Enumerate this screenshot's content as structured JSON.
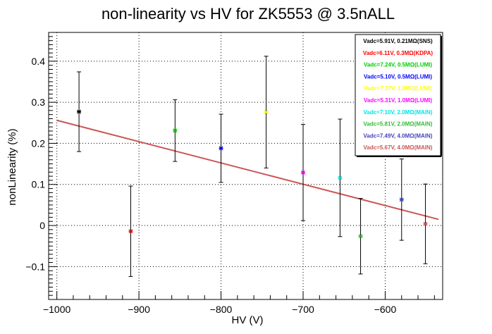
{
  "chart_data": {
    "type": "scatter",
    "title": "non-linearity vs HV for ZK5553 @ 3.5nALL",
    "xlabel": "HV (V)",
    "ylabel": "nonLinearity (%)",
    "xlim": [
      -1010,
      -530
    ],
    "ylim": [
      -0.18,
      0.47
    ],
    "x_ticks": [
      -1000,
      -900,
      -800,
      -700,
      -600
    ],
    "x_tick_labels": [
      "−1000",
      "−900",
      "−800",
      "−700",
      "−600"
    ],
    "y_ticks": [
      -0.1,
      0,
      0.1,
      0.2,
      0.3,
      0.4
    ],
    "y_tick_labels": [
      "−0.1",
      "0",
      "0.1",
      "0.2",
      "0.3",
      "0.4"
    ],
    "grid": true,
    "legend_position": "top-right",
    "series": [
      {
        "name": "Vadc=5.91V, 0.21MΩ(SNS)",
        "color": "#000000",
        "x": -973,
        "y": 0.277,
        "err": 0.097
      },
      {
        "name": "Vadc=6.11V, 0.3MΩ(KDPA)",
        "color": "#ff0000",
        "x": -910,
        "y": -0.014,
        "err": 0.11
      },
      {
        "name": "Vadc=7.24V, 0.5MΩ(LUMI)",
        "color": "#00cc00",
        "x": -856,
        "y": 0.231,
        "err": 0.075
      },
      {
        "name": "Vadc=5.10V, 0.5MΩ(LUMI)",
        "color": "#0000ff",
        "x": -800,
        "y": 0.188,
        "err": 0.083
      },
      {
        "name": "Vadc=7.37V, 1.0MΩ(LUMI)",
        "color": "#ffff00",
        "x": -745,
        "y": 0.276,
        "err": 0.136
      },
      {
        "name": "Vadc=5.31V, 1.0MΩ(LUMI)",
        "color": "#ff00ff",
        "x": -700,
        "y": 0.129,
        "err": 0.117
      },
      {
        "name": "Vadc=7.10V, 2.0MΩ(MAIN)",
        "color": "#00e5e5",
        "x": -655,
        "y": 0.116,
        "err": 0.143
      },
      {
        "name": "Vadc=5.81V, 2.0MΩ(MAIN)",
        "color": "#33bb33",
        "x": -630,
        "y": -0.026,
        "err": 0.092
      },
      {
        "name": "Vadc=7.49V, 4.0MΩ(MAIN)",
        "color": "#4444bb",
        "x": -580,
        "y": 0.063,
        "err": 0.099
      },
      {
        "name": "Vadc=5.67V, 4.0MΩ(MAIN)",
        "color": "#cc5555",
        "x": -551,
        "y": 0.004,
        "err": 0.097
      }
    ],
    "fit_line": {
      "color": "#cc5555",
      "x": [
        -1000,
        -535
      ],
      "y": [
        0.256,
        0.015
      ]
    }
  }
}
